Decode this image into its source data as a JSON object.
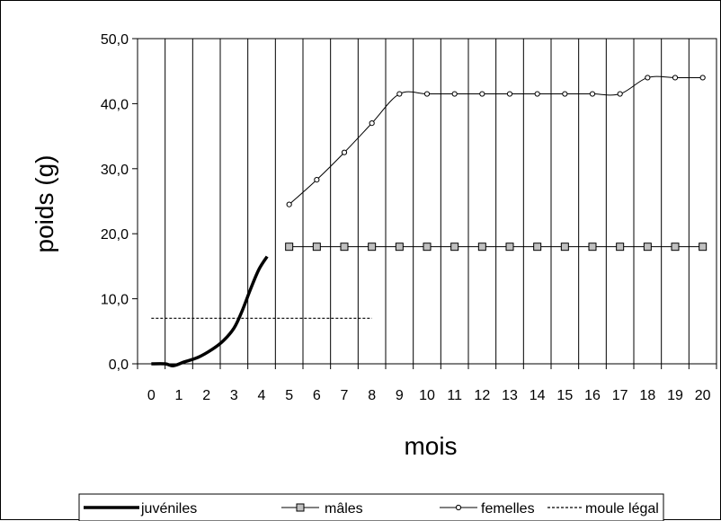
{
  "chart_data": {
    "type": "line",
    "title": "",
    "xlabel": "mois",
    "ylabel": "poids (g)",
    "ylim": [
      0,
      50
    ],
    "y_ticks": [
      "0,0",
      "10,0",
      "20,0",
      "30,0",
      "40,0",
      "50,0"
    ],
    "x_ticks": [
      "0",
      "1",
      "2",
      "3",
      "4",
      "5",
      "6",
      "7",
      "8",
      "9",
      "10",
      "11",
      "12",
      "13",
      "14",
      "15",
      "16",
      "17",
      "18",
      "19",
      "20"
    ],
    "grid": "vertical",
    "legend_placement": "bottom",
    "series": [
      {
        "name": "juvéniles",
        "style": "thick-solid",
        "color": "#000000",
        "points": [
          [
            0,
            0
          ],
          [
            0.5,
            0
          ],
          [
            0.8,
            -0.3
          ],
          [
            1.2,
            0.3
          ],
          [
            1.7,
            1.0
          ],
          [
            2.2,
            2.2
          ],
          [
            2.6,
            3.5
          ],
          [
            3.0,
            5.5
          ],
          [
            3.3,
            8.2
          ],
          [
            3.6,
            11.5
          ],
          [
            3.9,
            14.5
          ],
          [
            4.2,
            16.5
          ]
        ]
      },
      {
        "name": "mâles",
        "style": "square-markers",
        "color": "#000000",
        "marker_fill": "#c0c0c0",
        "points": [
          [
            5,
            18
          ],
          [
            6,
            18
          ],
          [
            7,
            18
          ],
          [
            8,
            18
          ],
          [
            9,
            18
          ],
          [
            10,
            18
          ],
          [
            11,
            18
          ],
          [
            12,
            18
          ],
          [
            13,
            18
          ],
          [
            14,
            18
          ],
          [
            15,
            18
          ],
          [
            16,
            18
          ],
          [
            17,
            18
          ],
          [
            18,
            18
          ],
          [
            19,
            18
          ],
          [
            20,
            18
          ]
        ]
      },
      {
        "name": "femelles",
        "style": "circle-markers",
        "color": "#000000",
        "points": [
          [
            5,
            24.5
          ],
          [
            6,
            28.3
          ],
          [
            7,
            32.5
          ],
          [
            8,
            37
          ],
          [
            9,
            41.5
          ],
          [
            10,
            41.5
          ],
          [
            11,
            41.5
          ],
          [
            12,
            41.5
          ],
          [
            13,
            41.5
          ],
          [
            14,
            41.5
          ],
          [
            15,
            41.5
          ],
          [
            16,
            41.5
          ],
          [
            17,
            41.5
          ],
          [
            18,
            44
          ],
          [
            19,
            44
          ],
          [
            20,
            44
          ]
        ]
      },
      {
        "name": "moule légal",
        "style": "dashed",
        "color": "#000000",
        "points": [
          [
            0,
            7
          ],
          [
            8,
            7
          ]
        ]
      }
    ]
  }
}
